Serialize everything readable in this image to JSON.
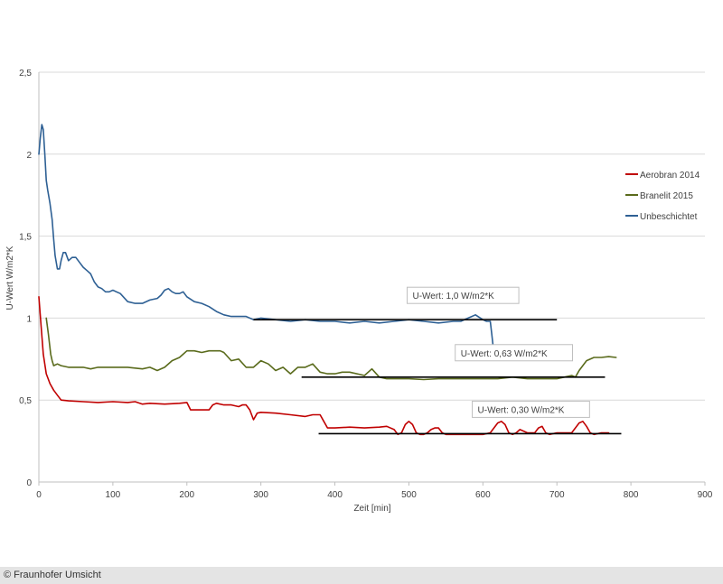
{
  "chart_data": {
    "type": "line",
    "title": "",
    "xlabel": "Zeit [min]",
    "ylabel": "U-Wert W/m2*K",
    "xlim": [
      0,
      900
    ],
    "ylim": [
      0,
      2.5
    ],
    "x_ticks": [
      0,
      100,
      200,
      300,
      400,
      500,
      600,
      700,
      800,
      900
    ],
    "y_ticks": [
      0,
      0.5,
      1,
      1.5,
      2,
      2.5
    ],
    "y_tick_labels": [
      "0",
      "0,5",
      "1",
      "1,5",
      "2",
      "2,5"
    ],
    "grid": "horizontal",
    "legend_position": "right",
    "series": [
      {
        "name": "Aerobran 2014",
        "color": "#c00000",
        "x": [
          0,
          3,
          6,
          10,
          15,
          20,
          25,
          30,
          40,
          60,
          80,
          100,
          120,
          130,
          140,
          150,
          170,
          190,
          200,
          205,
          210,
          215,
          220,
          230,
          235,
          240,
          250,
          260,
          270,
          275,
          280,
          285,
          290,
          295,
          300,
          320,
          340,
          360,
          370,
          380,
          385,
          390,
          395,
          400,
          420,
          440,
          460,
          470,
          480,
          485,
          490,
          495,
          500,
          505,
          510,
          515,
          520,
          525,
          530,
          535,
          540,
          545,
          550,
          555,
          560,
          570,
          580,
          590,
          600,
          610,
          620,
          625,
          630,
          635,
          640,
          645,
          650,
          660,
          670,
          675,
          680,
          685,
          690,
          700,
          710,
          720,
          730,
          735,
          740,
          745,
          750,
          760,
          770
        ],
        "y": [
          1.13,
          0.95,
          0.78,
          0.66,
          0.6,
          0.56,
          0.53,
          0.5,
          0.495,
          0.49,
          0.485,
          0.49,
          0.485,
          0.49,
          0.475,
          0.48,
          0.475,
          0.48,
          0.485,
          0.44,
          0.44,
          0.44,
          0.44,
          0.44,
          0.47,
          0.48,
          0.47,
          0.47,
          0.46,
          0.47,
          0.47,
          0.44,
          0.38,
          0.42,
          0.425,
          0.42,
          0.41,
          0.4,
          0.41,
          0.41,
          0.37,
          0.33,
          0.33,
          0.33,
          0.335,
          0.33,
          0.335,
          0.34,
          0.32,
          0.29,
          0.3,
          0.35,
          0.37,
          0.35,
          0.3,
          0.29,
          0.29,
          0.3,
          0.32,
          0.33,
          0.33,
          0.3,
          0.29,
          0.29,
          0.29,
          0.29,
          0.29,
          0.29,
          0.29,
          0.3,
          0.36,
          0.37,
          0.35,
          0.3,
          0.29,
          0.3,
          0.32,
          0.3,
          0.3,
          0.33,
          0.34,
          0.3,
          0.29,
          0.3,
          0.3,
          0.3,
          0.36,
          0.37,
          0.34,
          0.3,
          0.29,
          0.3,
          0.3
        ]
      },
      {
        "name": "Branelit 2015",
        "color": "#5a6b1c",
        "x": [
          10,
          13,
          16,
          18,
          20,
          25,
          30,
          40,
          50,
          60,
          70,
          80,
          100,
          120,
          140,
          150,
          160,
          170,
          180,
          190,
          195,
          200,
          210,
          220,
          230,
          240,
          245,
          250,
          260,
          270,
          280,
          290,
          300,
          310,
          320,
          330,
          340,
          350,
          360,
          370,
          380,
          390,
          400,
          410,
          420,
          440,
          450,
          460,
          470,
          480,
          500,
          520,
          540,
          560,
          580,
          600,
          620,
          640,
          660,
          680,
          700,
          710,
          720,
          725,
          730,
          740,
          750,
          760,
          770,
          780
        ],
        "y": [
          1.0,
          0.9,
          0.78,
          0.74,
          0.71,
          0.72,
          0.71,
          0.7,
          0.7,
          0.7,
          0.69,
          0.7,
          0.7,
          0.7,
          0.69,
          0.7,
          0.68,
          0.7,
          0.74,
          0.76,
          0.78,
          0.8,
          0.8,
          0.79,
          0.8,
          0.8,
          0.8,
          0.79,
          0.74,
          0.75,
          0.7,
          0.7,
          0.74,
          0.72,
          0.68,
          0.7,
          0.66,
          0.7,
          0.7,
          0.72,
          0.67,
          0.66,
          0.66,
          0.67,
          0.67,
          0.65,
          0.69,
          0.64,
          0.63,
          0.63,
          0.63,
          0.625,
          0.63,
          0.63,
          0.63,
          0.63,
          0.63,
          0.64,
          0.63,
          0.63,
          0.63,
          0.64,
          0.65,
          0.64,
          0.68,
          0.74,
          0.76,
          0.76,
          0.765,
          0.76
        ]
      },
      {
        "name": "Unbeschichtet",
        "color": "#2e6094",
        "x": [
          0,
          2,
          4,
          6,
          8,
          10,
          12,
          15,
          18,
          20,
          22,
          25,
          28,
          30,
          33,
          36,
          40,
          45,
          50,
          55,
          60,
          65,
          70,
          75,
          80,
          85,
          90,
          95,
          100,
          110,
          120,
          130,
          140,
          150,
          160,
          165,
          170,
          175,
          180,
          185,
          190,
          195,
          200,
          210,
          220,
          230,
          240,
          250,
          260,
          270,
          280,
          290,
          300,
          320,
          340,
          360,
          380,
          400,
          420,
          440,
          460,
          480,
          500,
          520,
          540,
          560,
          570,
          580,
          590,
          600,
          605,
          610,
          612,
          615
        ],
        "y": [
          2.0,
          2.1,
          2.18,
          2.15,
          2.0,
          1.84,
          1.78,
          1.7,
          1.6,
          1.48,
          1.38,
          1.3,
          1.3,
          1.35,
          1.4,
          1.4,
          1.35,
          1.37,
          1.37,
          1.34,
          1.31,
          1.29,
          1.27,
          1.22,
          1.19,
          1.18,
          1.16,
          1.16,
          1.17,
          1.15,
          1.1,
          1.09,
          1.09,
          1.11,
          1.12,
          1.14,
          1.17,
          1.18,
          1.16,
          1.15,
          1.15,
          1.16,
          1.13,
          1.1,
          1.09,
          1.07,
          1.04,
          1.02,
          1.01,
          1.01,
          1.01,
          0.99,
          1.0,
          0.99,
          0.98,
          0.99,
          0.98,
          0.98,
          0.97,
          0.98,
          0.97,
          0.98,
          0.99,
          0.98,
          0.97,
          0.98,
          0.98,
          1.0,
          1.02,
          0.99,
          0.98,
          0.98,
          0.9,
          0.78
        ]
      }
    ],
    "reference_lines": [
      {
        "label": "U-Wert: 1,0 W/m2*K",
        "y": 0.99,
        "x_start": 290,
        "x_end": 700
      },
      {
        "label": "U-Wert: 0,63 W/m2*K",
        "y": 0.64,
        "x_start": 355,
        "x_end": 765
      },
      {
        "label": "U-Wert: 0,30 W/m2*K",
        "y": 0.295,
        "x_start": 378,
        "x_end": 787
      }
    ]
  },
  "footer": {
    "credit": "© Fraunhofer Umsicht"
  }
}
